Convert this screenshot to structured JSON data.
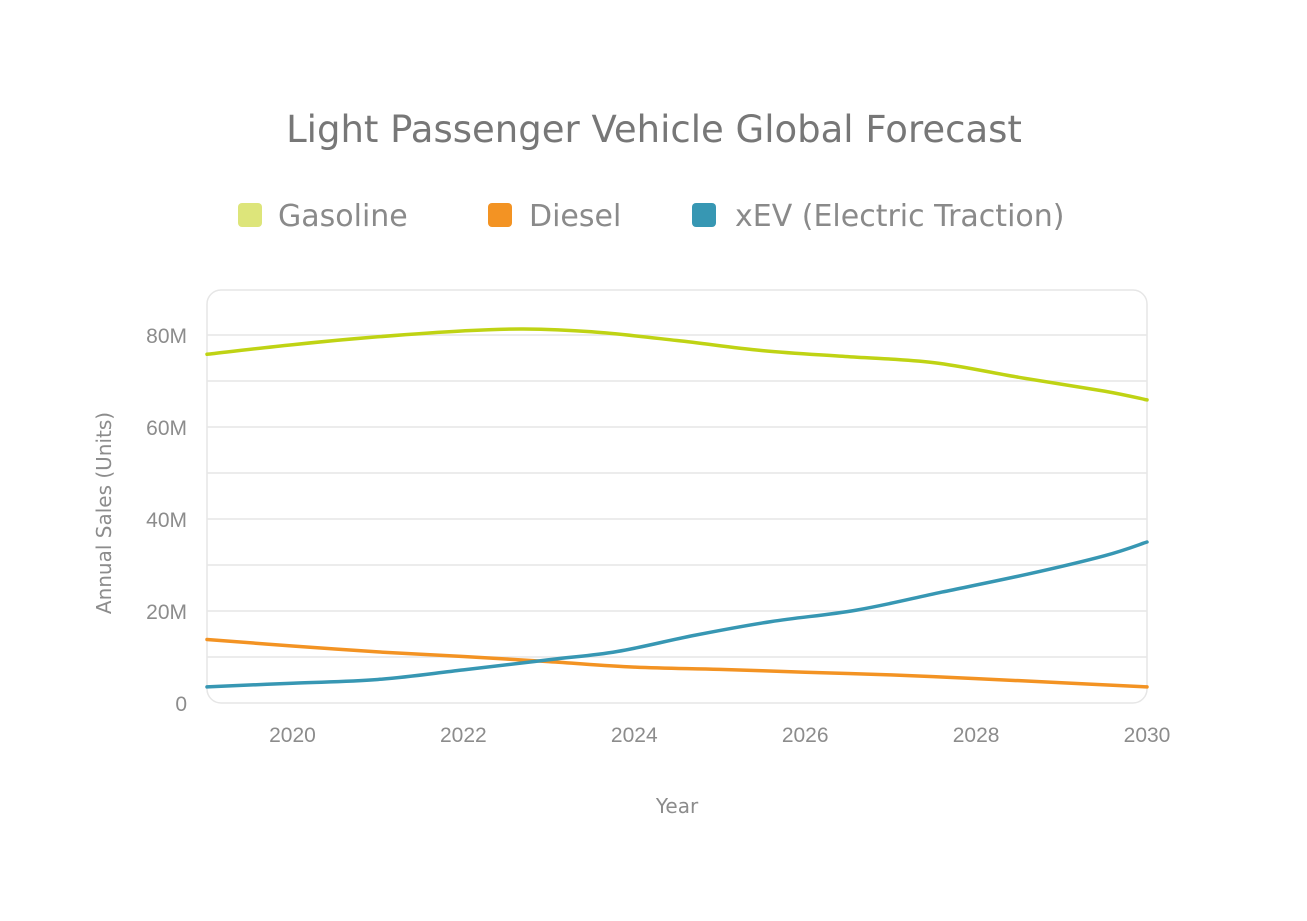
{
  "chart_data": {
    "type": "line",
    "title": "Light Passenger Vehicle Global Forecast",
    "xlabel": "Year",
    "ylabel": "Annual Sales (Units)",
    "xlim": [
      2019,
      2030
    ],
    "ylim": [
      0,
      90000000
    ],
    "x_ticks": [
      2020,
      2022,
      2024,
      2026,
      2028,
      2030
    ],
    "x_tick_labels": [
      "2020",
      "2022",
      "2024",
      "2026",
      "2028",
      "2030"
    ],
    "y_ticks": [
      0,
      20000000,
      40000000,
      60000000,
      80000000
    ],
    "y_tick_labels": [
      "0",
      "20M",
      "40M",
      "60M",
      "80M"
    ],
    "y_minor_gridlines": [
      10000000,
      30000000,
      50000000,
      70000000
    ],
    "grid": true,
    "legend_position": "top",
    "series": [
      {
        "name": "Gasoline",
        "color": "#bfd314",
        "legend_color": "#dde57a",
        "x": [
          2019,
          2020,
          2021,
          2022,
          2022.7,
          2023.5,
          2024.5,
          2025.5,
          2026.5,
          2027.5,
          2028.5,
          2029.5,
          2030
        ],
        "values": [
          75800000,
          77900000,
          79600000,
          80900000,
          81300000,
          80700000,
          78800000,
          76600000,
          75300000,
          74000000,
          70800000,
          67800000,
          65900000
        ]
      },
      {
        "name": "Diesel",
        "color": "#f39323",
        "legend_color": "#f39323",
        "x": [
          2019,
          2020,
          2021,
          2022,
          2023,
          2024,
          2025,
          2026,
          2027,
          2028,
          2029,
          2030
        ],
        "values": [
          13800000,
          12400000,
          11100000,
          10100000,
          9000000,
          7800000,
          7300000,
          6700000,
          6100000,
          5300000,
          4400000,
          3500000
        ]
      },
      {
        "name": "xEV (Electric Traction)",
        "color": "#3797b3",
        "legend_color": "#3797b3",
        "x": [
          2019,
          2020,
          2021,
          2022,
          2023,
          2023.8,
          2024.7,
          2025.6,
          2026.6,
          2027.6,
          2028.6,
          2029.5,
          2030
        ],
        "values": [
          3500000,
          4300000,
          5100000,
          7200000,
          9400000,
          11200000,
          14700000,
          17700000,
          20200000,
          24100000,
          28000000,
          32000000,
          35000000
        ]
      }
    ]
  }
}
